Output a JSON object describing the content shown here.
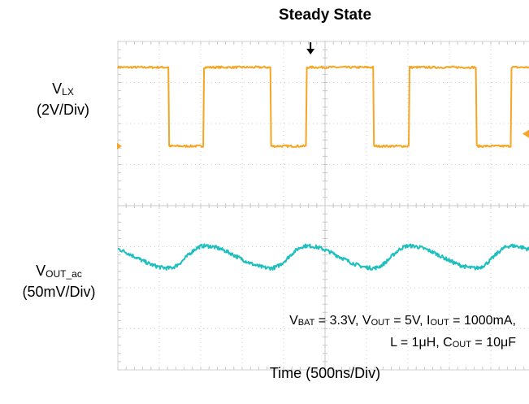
{
  "chart_data": {
    "type": "line",
    "title": "Steady State",
    "xlabel": "Time (500ns/Div)",
    "x_divisions": 10,
    "y_divisions": 8,
    "channels": [
      {
        "id": "vlx",
        "label_main": "V",
        "label_sub": "LX",
        "scale": "(2V/Div)",
        "color": "#F5A623",
        "waveform": "square",
        "period_div": 2.47,
        "high_div": 1.62,
        "first_fall_div": 1.23,
        "high_level_div": 3.37,
        "low_level_div": 1.45,
        "ground_marker_div": 1.45
      },
      {
        "id": "vout",
        "label_main": "V",
        "label_sub": "OUT_ac",
        "scale": "(50mV/Div)",
        "color": "#1DBFBF",
        "waveform": "ripple",
        "center_div": -1.25,
        "amplitude_div": 0.27
      }
    ],
    "trigger_marker_div": 4.65,
    "trigger_level_marker_div": 1.75
  },
  "conditions": {
    "line1": [
      {
        "t": "V"
      },
      {
        "s": "BAT"
      },
      {
        "t": " = 3.3V, V"
      },
      {
        "s": "OUT"
      },
      {
        "t": " = 5V, I"
      },
      {
        "s": "OUT"
      },
      {
        "t": " = 1000mA,"
      }
    ],
    "line2": [
      {
        "t": "L = 1μH, C"
      },
      {
        "s": "OUT"
      },
      {
        "t": " = 10μF"
      }
    ]
  }
}
